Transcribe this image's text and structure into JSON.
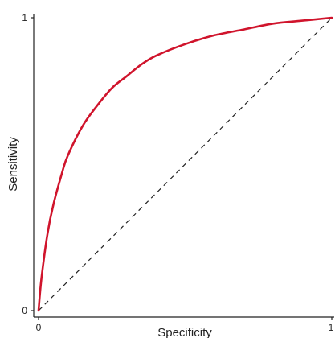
{
  "chart_data": {
    "type": "line",
    "title": "",
    "xlabel": "Specificity",
    "ylabel": "Sensitivity",
    "xlim": [
      0,
      1
    ],
    "ylim": [
      0,
      1
    ],
    "x_ticks": [
      "0",
      "1"
    ],
    "y_ticks": [
      "0",
      "1"
    ],
    "grid": false,
    "series": [
      {
        "style": "solid",
        "color": "#d0142c",
        "x": [
          0,
          0.01,
          0.03,
          0.05,
          0.08,
          0.1,
          0.15,
          0.2,
          0.25,
          0.3,
          0.35,
          0.4,
          0.5,
          0.6,
          0.7,
          0.8,
          0.9,
          1.0
        ],
        "y": [
          0,
          0.11,
          0.26,
          0.36,
          0.47,
          0.53,
          0.63,
          0.7,
          0.76,
          0.8,
          0.84,
          0.87,
          0.91,
          0.94,
          0.96,
          0.98,
          0.99,
          1.0
        ]
      },
      {
        "style": "dashed",
        "color": "#222222",
        "x": [
          0,
          1
        ],
        "y": [
          0,
          1
        ]
      }
    ]
  }
}
